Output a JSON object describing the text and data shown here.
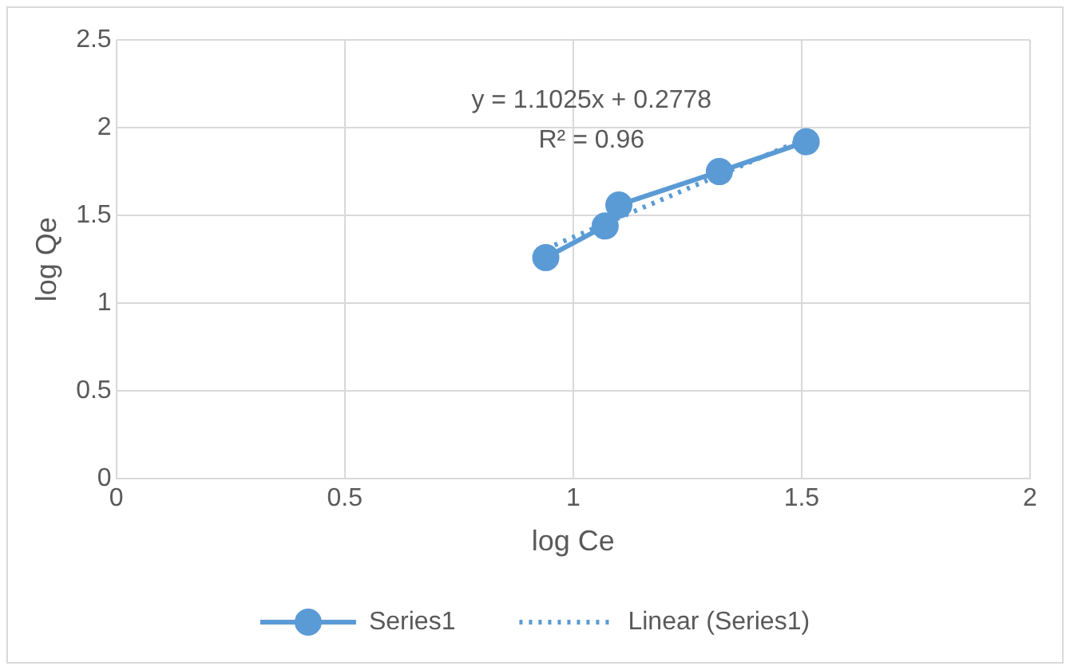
{
  "chart_data": {
    "type": "line",
    "xlabel": "log Ce",
    "ylabel": "log Qe",
    "xlim": [
      0,
      2
    ],
    "xticks": [
      0,
      0.5,
      1,
      1.5,
      2
    ],
    "ylim": [
      0,
      2.5
    ],
    "yticks": [
      0,
      0.5,
      1,
      1.5,
      2,
      2.5
    ],
    "grid": true,
    "legend": "bottom",
    "series": [
      {
        "name": "Series1",
        "color": "#5b9bd5",
        "x": [
          0.94,
          1.07,
          1.1,
          1.32,
          1.51
        ],
        "values": [
          1.26,
          1.44,
          1.56,
          1.75,
          1.92
        ],
        "marker": "circle",
        "line_style": "solid"
      },
      {
        "name": "Linear (Series1)",
        "color": "#5b9bd5",
        "x": [
          0.94,
          1.51
        ],
        "values": [
          1.31,
          1.94
        ],
        "marker": "none",
        "line_style": "dotted"
      }
    ],
    "annotations": [
      "y = 1.1025x + 0.2778",
      "R² = 0.96"
    ]
  }
}
